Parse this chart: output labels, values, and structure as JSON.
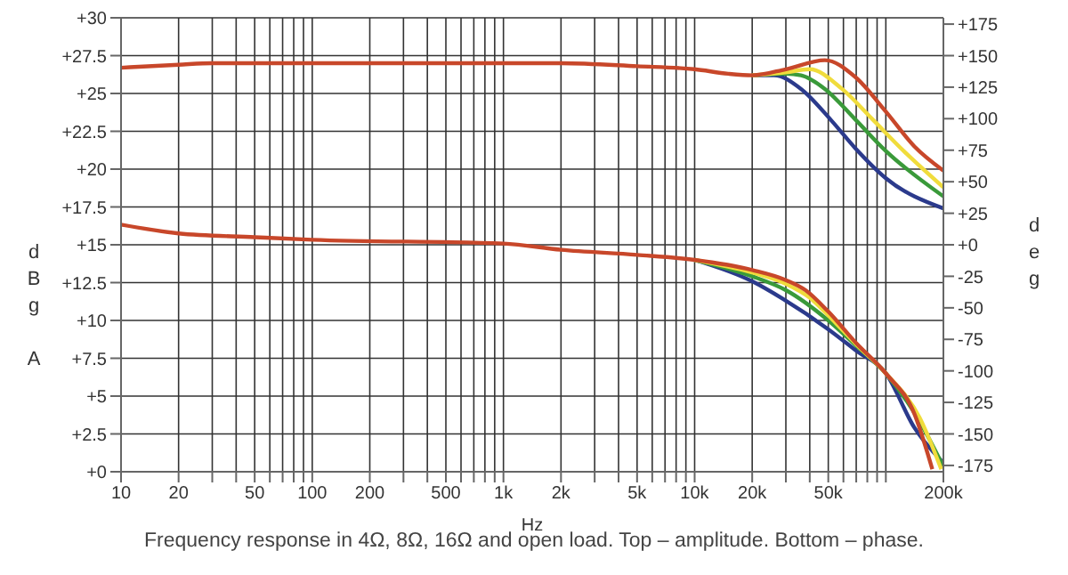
{
  "chart_data": {
    "type": "line",
    "xlabel": "Hz",
    "ylabel": "dBg A",
    "y2label": "deg",
    "annotations": [
      "Frequency response in 4Ω, 8Ω, 16Ω and open load. Top – amplitude. Bottom – phase."
    ],
    "log": "x",
    "grid": true,
    "legend": false,
    "xlim": [
      10,
      200000
    ],
    "xticks": [
      10,
      20,
      {
        "value": 30,
        "label": null
      },
      {
        "value": 40,
        "label": null
      },
      50,
      {
        "value": 60,
        "label": null
      },
      {
        "value": 70,
        "label": null
      },
      {
        "value": 80,
        "label": null
      },
      {
        "value": 90,
        "label": null
      },
      100,
      200,
      {
        "value": 300,
        "label": null
      },
      {
        "value": 400,
        "label": null
      },
      500,
      {
        "value": 600,
        "label": null
      },
      {
        "value": 700,
        "label": null
      },
      {
        "value": 800,
        "label": null
      },
      {
        "value": 900,
        "label": null
      },
      {
        "value": 1000,
        "label": "1k"
      },
      {
        "value": 2000,
        "label": "2k"
      },
      {
        "value": 3000,
        "label": null
      },
      {
        "value": 4000,
        "label": null
      },
      {
        "value": 5000,
        "label": "5k"
      },
      {
        "value": 6000,
        "label": null
      },
      {
        "value": 7000,
        "label": null
      },
      {
        "value": 8000,
        "label": null
      },
      {
        "value": 9000,
        "label": null
      },
      {
        "value": 10000,
        "label": "10k"
      },
      {
        "value": 20000,
        "label": "20k"
      },
      {
        "value": 30000,
        "label": null
      },
      {
        "value": 40000,
        "label": null
      },
      {
        "value": 50000,
        "label": "50k"
      },
      {
        "value": 60000,
        "label": null
      },
      {
        "value": 70000,
        "label": null
      },
      {
        "value": 80000,
        "label": null
      },
      {
        "value": 90000,
        "label": null
      },
      {
        "value": 100000,
        "label": null
      },
      {
        "value": 200000,
        "label": "200k"
      }
    ],
    "ylim": [
      0,
      30
    ],
    "yticks": [
      {
        "value": 0,
        "label": "+0"
      },
      {
        "value": 2.5,
        "label": "+2.5"
      },
      {
        "value": 5,
        "label": "+5"
      },
      {
        "value": 7.5,
        "label": "+7.5"
      },
      {
        "value": 10,
        "label": "+10"
      },
      {
        "value": 12.5,
        "label": "+12.5"
      },
      {
        "value": 15,
        "label": "+15"
      },
      {
        "value": 17.5,
        "label": "+17.5"
      },
      {
        "value": 20,
        "label": "+20"
      },
      {
        "value": 22.5,
        "label": "+22.5"
      },
      {
        "value": 25,
        "label": "+25"
      },
      {
        "value": 27.5,
        "label": "+27.5"
      },
      {
        "value": 30,
        "label": "+30"
      }
    ],
    "y2lim": [
      -180,
      180
    ],
    "y2ticks": [
      -175,
      -150,
      -125,
      -100,
      -75,
      -50,
      -25,
      {
        "value": 0,
        "label": "+0"
      },
      {
        "value": 25,
        "label": "+25"
      },
      {
        "value": 50,
        "label": "+50"
      },
      {
        "value": 75,
        "label": "+75"
      },
      {
        "value": 100,
        "label": "+100"
      },
      {
        "value": 125,
        "label": "+125"
      },
      {
        "value": 150,
        "label": "+150"
      },
      {
        "value": 175,
        "label": "+175"
      }
    ],
    "series": [
      {
        "color": "#2b3a8c",
        "x": [
          20000,
          26000,
          36000,
          52000,
          69000,
          100000,
          200000
        ],
        "values": [
          26.2,
          26.2,
          25.3,
          23.2,
          21.4,
          19.4,
          17.4
        ]
      },
      {
        "color": "#3a9a3a",
        "x": [
          20000,
          30000,
          36000,
          48000,
          69000,
          100000,
          200000
        ],
        "values": [
          26.2,
          26.3,
          26.2,
          25.3,
          23.3,
          21.2,
          18.2
        ]
      },
      {
        "color": "#f0dc3c",
        "x": [
          20000,
          30000,
          40000,
          59000,
          85000,
          124000,
          200000
        ],
        "values": [
          26.2,
          26.4,
          26.6,
          25.3,
          23.3,
          21.2,
          18.8
        ]
      },
      {
        "color": "#c8472a",
        "x": [
          10,
          20,
          30,
          100,
          1000,
          2000,
          5000,
          10000,
          15000,
          20000,
          30000,
          48000,
          69000,
          100000,
          141000,
          200000
        ],
        "values": [
          26.7,
          26.9,
          27.0,
          27.0,
          27.0,
          27.0,
          26.8,
          26.6,
          26.3,
          26.2,
          26.6,
          27.2,
          26.1,
          23.8,
          21.5,
          19.9
        ]
      },
      {
        "color": "#2b3a8c",
        "axis": "y2",
        "x": [
          10000,
          20000,
          29000,
          50000,
          70000,
          100000,
          141000,
          200000
        ],
        "values": [
          -12,
          -29,
          -43,
          -67,
          -84,
          -102,
          -145,
          -173
        ]
      },
      {
        "color": "#3a9a3a",
        "axis": "y2",
        "x": [
          10000,
          20000,
          30000,
          50000,
          70000,
          100000,
          150000,
          200000
        ],
        "values": [
          -12,
          -25,
          -36,
          -60,
          -80,
          -102,
          -140,
          -176
        ]
      },
      {
        "color": "#f0dc3c",
        "axis": "y2",
        "x": [
          10000,
          20000,
          30000,
          40000,
          50000,
          70000,
          100000,
          150000,
          195000
        ],
        "values": [
          -12,
          -22,
          -31,
          -42,
          -56,
          -79,
          -102,
          -137,
          -178
        ]
      },
      {
        "color": "#c8472a",
        "axis": "y2",
        "x": [
          10,
          20,
          50,
          100,
          1000,
          2000,
          5000,
          10000,
          20000,
          30000,
          38000,
          50000,
          70000,
          100000,
          141000,
          175000
        ],
        "values": [
          16,
          9,
          6,
          4,
          1,
          -4,
          -8,
          -12,
          -20,
          -28,
          -36,
          -53,
          -78,
          -102,
          -134,
          -178
        ]
      }
    ]
  }
}
